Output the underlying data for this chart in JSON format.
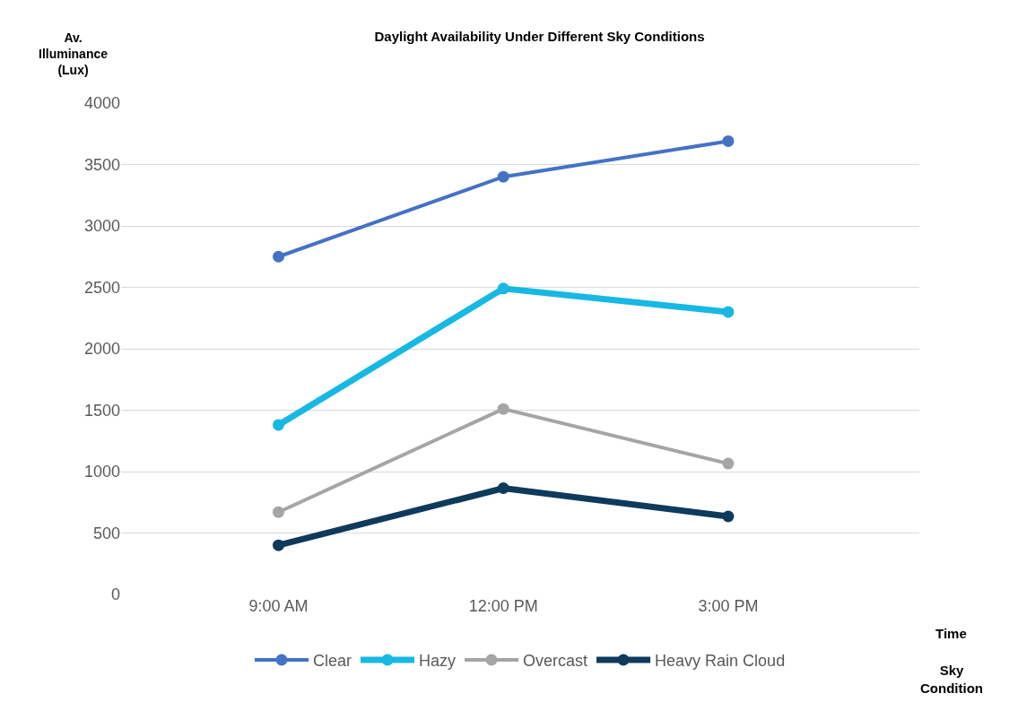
{
  "chart_data": {
    "type": "line",
    "title": "Daylight Availability Under Different Sky Conditions",
    "ylabel": "Av.\nIlluminance\n(Lux)",
    "xlabel": "Time",
    "legend_title": "Sky\nCondition",
    "categories": [
      "9:00 AM",
      "12:00 PM",
      "3:00 PM"
    ],
    "series": [
      {
        "name": "Clear",
        "color": "#4472c4",
        "values": [
          2750,
          3400,
          3690
        ]
      },
      {
        "name": "Hazy",
        "color": "#17b8e3",
        "values": [
          1380,
          2490,
          2300
        ]
      },
      {
        "name": "Overcast",
        "color": "#a5a5a5",
        "values": [
          670,
          1510,
          1065
        ]
      },
      {
        "name": "Heavy Rain Cloud",
        "color": "#0e3a5c",
        "values": [
          400,
          865,
          635
        ]
      }
    ],
    "ylim": [
      0,
      4000
    ],
    "yticks": [
      0,
      500,
      1000,
      1500,
      2000,
      2500,
      3000,
      3500,
      4000
    ],
    "grid": "y",
    "legend": "bottom",
    "marker": "circle",
    "line_style": "solid"
  }
}
